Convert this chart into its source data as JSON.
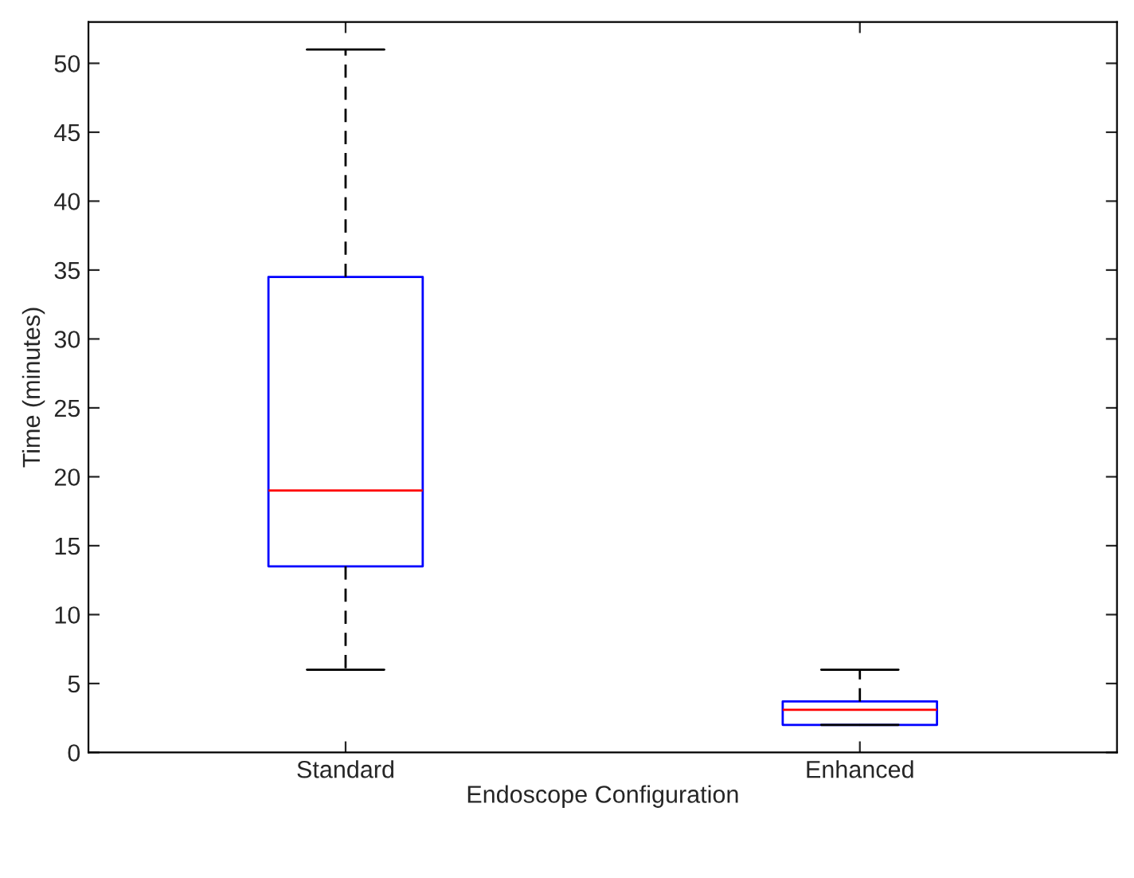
{
  "chart_data": {
    "type": "box",
    "xlabel": "Endoscope Configuration",
    "ylabel": "Time (minutes)",
    "categories": [
      "Standard",
      "Enhanced"
    ],
    "boxes": [
      {
        "low": 6,
        "q1": 13.5,
        "median": 19,
        "q3": 34.5,
        "high": 51
      },
      {
        "low": 2,
        "q1": 2,
        "median": 3.1,
        "q3": 3.7,
        "high": 6
      }
    ],
    "color": "#0000ff",
    "ylim": [
      0,
      53
    ],
    "yticks": [
      0,
      5,
      10,
      15,
      20,
      25,
      30,
      35,
      40,
      45,
      50
    ],
    "grid": false,
    "legend": false
  }
}
